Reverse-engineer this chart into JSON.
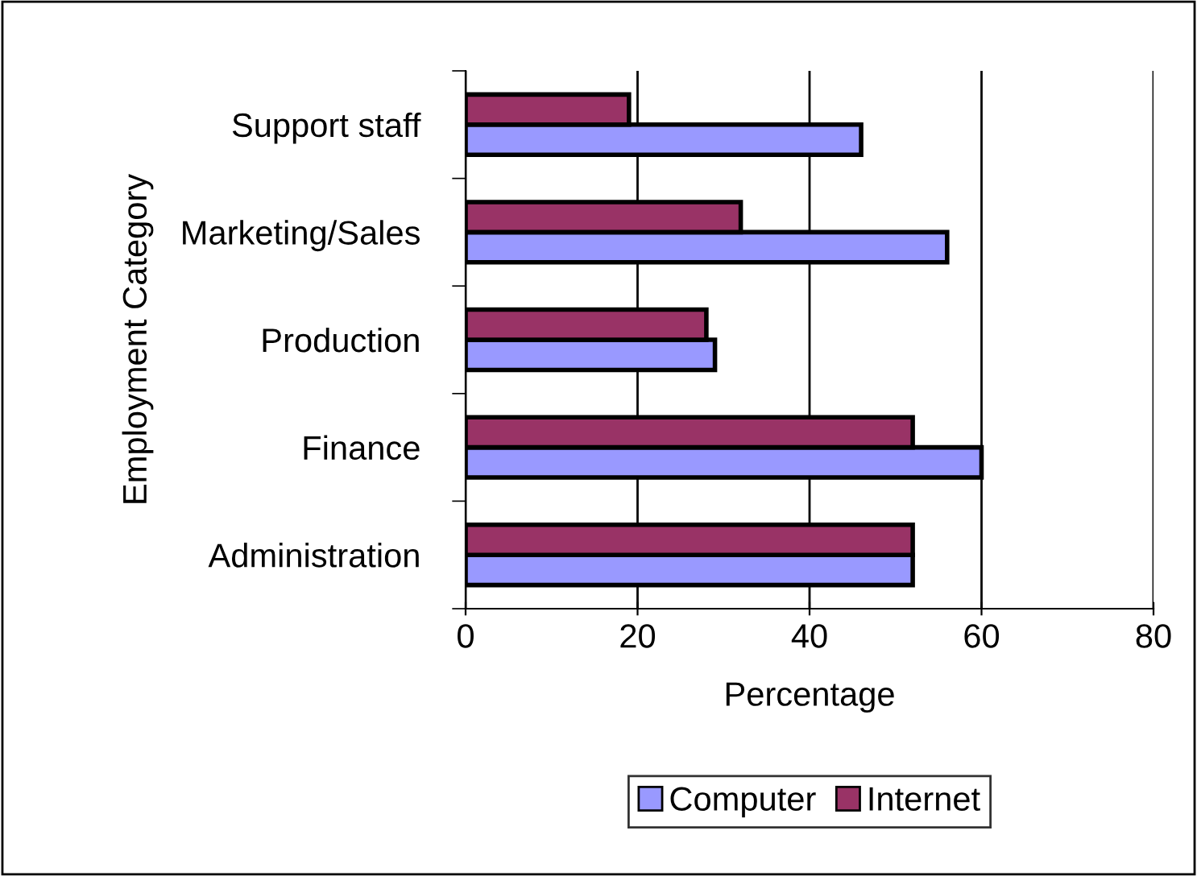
{
  "chart_data": {
    "type": "bar",
    "orientation": "horizontal",
    "xlabel": "Percentage",
    "ylabel": "Employment Category",
    "categories": [
      "Support staff",
      "Marketing/Sales",
      "Production",
      "Finance",
      "Administration"
    ],
    "series": [
      {
        "name": "Computer",
        "color": "#9999ff",
        "values": [
          46,
          56,
          29,
          60,
          52
        ]
      },
      {
        "name": "Internet",
        "color": "#993366",
        "values": [
          19,
          32,
          28,
          52,
          52
        ]
      }
    ],
    "xlim": [
      0,
      80
    ],
    "xticks": [
      0,
      20,
      40,
      60,
      80
    ],
    "grid": "x",
    "legend": "bottom"
  }
}
